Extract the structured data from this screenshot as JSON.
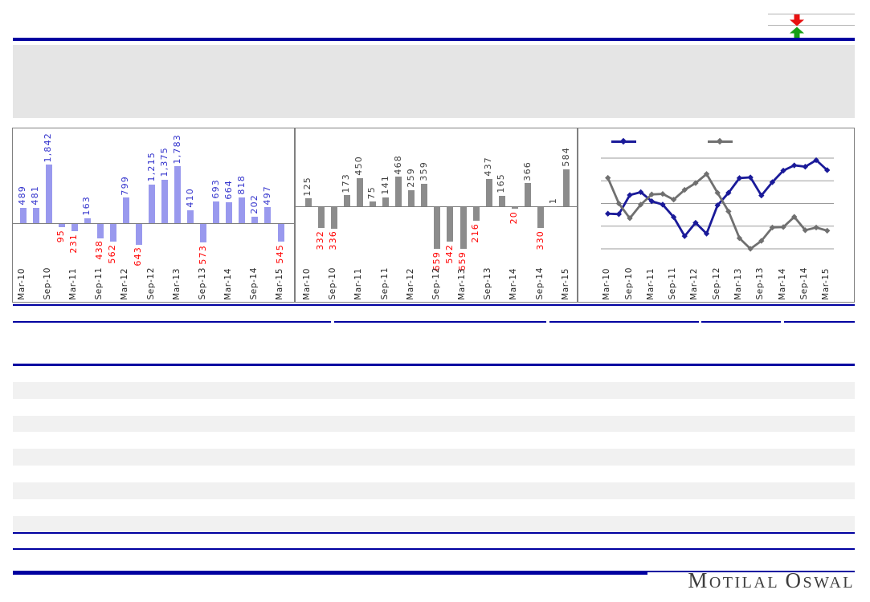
{
  "brand": {
    "logo_text": "Motilal Oswal",
    "logo_parts": {
      "w1i": "M",
      "w1r": "OTILAL",
      "w2i": "O",
      "w2r": "SWAL"
    },
    "mark": {
      "down_arrow_icon_color": "#e81111",
      "up_arrow_icon_color": "#16a016",
      "line_color": "#b3b3b3"
    }
  },
  "colors": {
    "rule_navy": "#0000a0",
    "header_band": "#e5e5e5",
    "table_stripe": "#f1f1f1",
    "chart_border": "#808080",
    "axis": "#7f7f7f",
    "gridline": "#9b9b9b",
    "tick_label": "#262626"
  },
  "chart_data": [
    {
      "type": "bar",
      "title": "",
      "tick_labels": [
        "Mar-10",
        "Sep-10",
        "Mar-11",
        "Sep-11",
        "Mar-12",
        "Sep-12",
        "Mar-13",
        "Sep-13",
        "Mar-14",
        "Sep-14",
        "Mar-15"
      ],
      "tick_every": 2,
      "values": [
        489,
        481,
        1842,
        -95,
        -231,
        163,
        -438,
        -562,
        799,
        -643,
        1215,
        1375,
        1783,
        410,
        -573,
        693,
        664,
        818,
        202,
        497,
        -545
      ],
      "labels": [
        "489",
        "481",
        "1,842",
        "95",
        "231",
        "163",
        "438",
        "562",
        "799",
        "643",
        "1,215",
        "1,375",
        "1,783",
        "410",
        "573",
        "693",
        "664",
        "818",
        "202",
        "497",
        "545"
      ],
      "bar_color": "#9999ee",
      "pos_label_color": "#3333cc",
      "neg_label_color": "#ff0000",
      "axis_color": "#7f7f7f"
    },
    {
      "type": "bar",
      "title": "",
      "tick_labels": [
        "Mar-10",
        "Sep-10",
        "Mar-11",
        "Sep-11",
        "Mar-12",
        "Sep-12",
        "Mar-13",
        "Sep-13",
        "Mar-14",
        "Sep-14",
        "Mar-15"
      ],
      "tick_every": 2,
      "values": [
        125,
        -332,
        -336,
        173,
        450,
        75,
        141,
        468,
        259,
        359,
        -659,
        -542,
        -659,
        -216,
        437,
        165,
        -20,
        366,
        -330,
        1,
        584
      ],
      "labels": [
        "125",
        "332",
        "336",
        "173",
        "450",
        "75",
        "141",
        "468",
        "259",
        "359",
        "659",
        "542",
        "659",
        "216",
        "437",
        "165",
        "20",
        "366",
        "330",
        "1",
        "584"
      ],
      "bar_color": "#8c8c8c",
      "pos_label_color": "#3f3f3f",
      "neg_label_color": "#ff0000",
      "axis_color": "#7f7f7f"
    },
    {
      "type": "line",
      "title": "",
      "tick_labels": [
        "Mar-10",
        "Sep-10",
        "Mar-11",
        "Sep-11",
        "Mar-12",
        "Sep-12",
        "Mar-13",
        "Sep-13",
        "Mar-14",
        "Sep-14",
        "Mar-15"
      ],
      "tick_every": 2,
      "gridlines": 5,
      "ylim": [
        0,
        4
      ],
      "legend": {
        "position": "top",
        "labels": [
          "",
          ""
        ]
      },
      "series": [
        {
          "name": "series-1",
          "color": "#1a1a99",
          "values": [
            1.55,
            1.53,
            2.37,
            2.5,
            2.1,
            1.95,
            1.4,
            0.56,
            1.15,
            0.67,
            1.92,
            2.47,
            3.12,
            3.15,
            2.35,
            2.94,
            3.45,
            3.68,
            3.62,
            3.91,
            3.47
          ]
        },
        {
          "name": "series-2",
          "color": "#707070",
          "values": [
            3.13,
            2.0,
            1.35,
            1.95,
            2.4,
            2.42,
            2.17,
            2.6,
            2.9,
            3.3,
            2.47,
            1.65,
            0.47,
            0.0,
            0.35,
            0.94,
            0.96,
            1.41,
            0.82,
            0.94,
            0.8
          ]
        }
      ]
    }
  ]
}
